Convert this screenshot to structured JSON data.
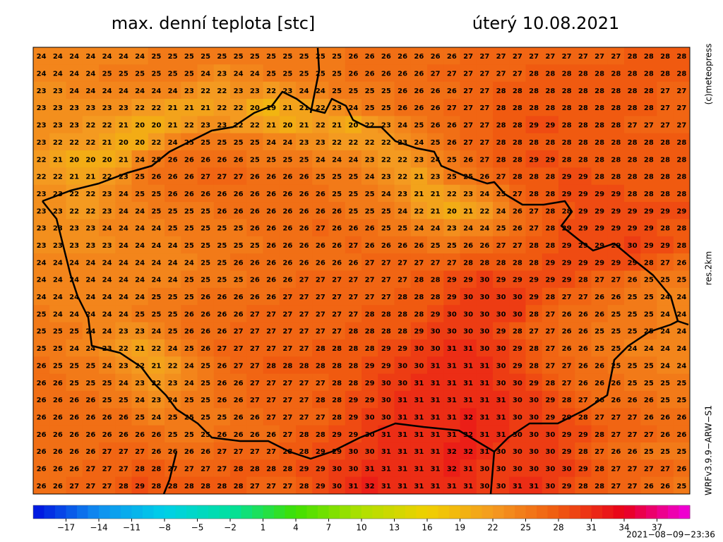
{
  "header": {
    "title": "max. denní teplota [stc]",
    "date": "úterý 10.08.2021"
  },
  "side_labels": {
    "credit": "(c)meteopress",
    "resolution": "res.2km",
    "model": "WRFv3.9.9−ARW−S1"
  },
  "timestamp": "2021−08−09−23:36",
  "map": {
    "grid": [
      [
        24,
        24,
        24,
        24,
        24,
        24,
        24,
        25,
        25,
        25,
        25,
        25,
        25,
        25,
        25,
        25,
        25,
        25,
        25,
        26,
        26,
        26,
        26,
        26,
        26,
        26,
        27,
        27,
        27,
        27,
        27,
        27,
        27,
        27,
        27,
        27,
        28,
        28,
        28,
        28
      ],
      [
        24,
        24,
        24,
        24,
        25,
        25,
        25,
        25,
        25,
        25,
        24,
        23,
        24,
        24,
        25,
        25,
        25,
        25,
        25,
        26,
        26,
        26,
        26,
        26,
        27,
        27,
        27,
        27,
        27,
        27,
        28,
        28,
        28,
        28,
        28,
        28,
        28,
        28,
        28,
        28
      ],
      [
        23,
        23,
        24,
        24,
        24,
        24,
        24,
        24,
        24,
        23,
        22,
        22,
        23,
        23,
        22,
        23,
        24,
        24,
        25,
        25,
        25,
        25,
        26,
        26,
        26,
        26,
        27,
        27,
        28,
        28,
        28,
        28,
        28,
        28,
        28,
        28,
        28,
        28,
        27,
        27
      ],
      [
        23,
        23,
        23,
        23,
        23,
        23,
        22,
        22,
        21,
        21,
        21,
        22,
        22,
        20,
        19,
        21,
        21,
        22,
        23,
        24,
        25,
        25,
        26,
        26,
        26,
        27,
        27,
        27,
        28,
        28,
        28,
        28,
        28,
        28,
        28,
        28,
        28,
        28,
        27,
        27
      ],
      [
        23,
        23,
        23,
        22,
        22,
        21,
        20,
        20,
        21,
        22,
        23,
        23,
        22,
        22,
        21,
        20,
        21,
        22,
        21,
        20,
        22,
        23,
        24,
        25,
        26,
        26,
        27,
        27,
        28,
        28,
        29,
        29,
        28,
        28,
        28,
        28,
        27,
        27,
        27,
        27
      ],
      [
        23,
        22,
        22,
        22,
        21,
        20,
        20,
        22,
        24,
        25,
        25,
        25,
        25,
        25,
        24,
        24,
        23,
        23,
        22,
        22,
        22,
        22,
        23,
        24,
        25,
        26,
        27,
        27,
        28,
        28,
        28,
        28,
        28,
        28,
        28,
        28,
        28,
        28,
        28,
        28
      ],
      [
        22,
        21,
        20,
        20,
        20,
        21,
        24,
        25,
        26,
        26,
        26,
        26,
        26,
        25,
        25,
        25,
        25,
        24,
        24,
        24,
        23,
        22,
        22,
        23,
        24,
        25,
        26,
        27,
        28,
        28,
        29,
        29,
        28,
        28,
        28,
        28,
        28,
        28,
        28,
        28
      ],
      [
        22,
        22,
        21,
        21,
        22,
        23,
        25,
        26,
        26,
        26,
        27,
        27,
        27,
        26,
        26,
        26,
        26,
        25,
        25,
        25,
        24,
        23,
        22,
        21,
        23,
        25,
        25,
        26,
        27,
        28,
        28,
        28,
        29,
        29,
        28,
        28,
        28,
        28,
        28,
        28
      ],
      [
        23,
        23,
        22,
        22,
        23,
        24,
        25,
        25,
        26,
        26,
        26,
        26,
        26,
        26,
        26,
        26,
        26,
        26,
        25,
        25,
        25,
        24,
        23,
        21,
        21,
        22,
        23,
        24,
        25,
        27,
        28,
        28,
        29,
        29,
        29,
        29,
        28,
        28,
        28,
        28
      ],
      [
        23,
        23,
        22,
        22,
        23,
        24,
        24,
        25,
        25,
        25,
        25,
        26,
        26,
        26,
        26,
        26,
        26,
        26,
        26,
        25,
        25,
        25,
        24,
        22,
        21,
        20,
        21,
        22,
        24,
        26,
        27,
        28,
        28,
        29,
        29,
        29,
        29,
        29,
        29,
        29
      ],
      [
        23,
        23,
        23,
        23,
        24,
        24,
        24,
        24,
        25,
        25,
        25,
        25,
        25,
        26,
        26,
        26,
        26,
        27,
        26,
        26,
        26,
        25,
        25,
        24,
        24,
        23,
        24,
        24,
        25,
        26,
        27,
        28,
        29,
        29,
        29,
        29,
        29,
        29,
        28,
        28
      ],
      [
        23,
        23,
        23,
        23,
        23,
        24,
        24,
        24,
        24,
        25,
        25,
        25,
        25,
        25,
        26,
        26,
        26,
        26,
        26,
        27,
        26,
        26,
        26,
        26,
        25,
        25,
        26,
        26,
        27,
        27,
        28,
        28,
        29,
        29,
        29,
        29,
        30,
        29,
        29,
        28
      ],
      [
        24,
        24,
        24,
        24,
        24,
        24,
        24,
        24,
        24,
        24,
        25,
        25,
        26,
        26,
        26,
        26,
        26,
        26,
        26,
        26,
        27,
        27,
        27,
        27,
        27,
        27,
        28,
        28,
        28,
        28,
        28,
        29,
        29,
        29,
        29,
        29,
        29,
        28,
        27,
        26
      ],
      [
        24,
        24,
        24,
        24,
        24,
        24,
        24,
        24,
        24,
        25,
        25,
        25,
        25,
        26,
        26,
        26,
        27,
        27,
        27,
        27,
        27,
        27,
        27,
        28,
        28,
        29,
        29,
        30,
        29,
        29,
        29,
        29,
        29,
        28,
        27,
        27,
        26,
        25,
        25,
        25
      ],
      [
        24,
        24,
        24,
        24,
        24,
        24,
        24,
        25,
        25,
        25,
        26,
        26,
        26,
        26,
        26,
        27,
        27,
        27,
        27,
        27,
        27,
        27,
        28,
        28,
        28,
        29,
        30,
        30,
        30,
        30,
        29,
        28,
        27,
        27,
        26,
        26,
        25,
        25,
        24,
        24
      ],
      [
        25,
        24,
        24,
        24,
        24,
        24,
        25,
        25,
        25,
        26,
        26,
        26,
        26,
        27,
        27,
        27,
        27,
        27,
        27,
        27,
        28,
        28,
        28,
        28,
        29,
        30,
        30,
        30,
        30,
        30,
        28,
        27,
        26,
        26,
        26,
        25,
        25,
        25,
        24,
        24
      ],
      [
        25,
        25,
        25,
        24,
        24,
        23,
        23,
        24,
        25,
        26,
        26,
        26,
        27,
        27,
        27,
        27,
        27,
        27,
        27,
        28,
        28,
        28,
        28,
        29,
        30,
        30,
        30,
        30,
        29,
        28,
        27,
        27,
        26,
        26,
        25,
        25,
        25,
        25,
        24,
        24
      ],
      [
        25,
        25,
        24,
        24,
        23,
        22,
        21,
        22,
        24,
        25,
        26,
        27,
        27,
        27,
        27,
        27,
        27,
        28,
        28,
        28,
        28,
        29,
        29,
        30,
        30,
        31,
        31,
        30,
        30,
        29,
        28,
        27,
        26,
        26,
        25,
        25,
        24,
        24,
        24,
        24
      ],
      [
        26,
        25,
        25,
        25,
        24,
        23,
        22,
        21,
        22,
        24,
        25,
        26,
        27,
        27,
        28,
        28,
        28,
        28,
        28,
        28,
        29,
        29,
        30,
        30,
        31,
        31,
        31,
        31,
        30,
        29,
        28,
        27,
        27,
        26,
        26,
        25,
        25,
        25,
        24,
        24
      ],
      [
        26,
        26,
        25,
        25,
        25,
        24,
        23,
        22,
        23,
        24,
        25,
        26,
        26,
        27,
        27,
        27,
        27,
        27,
        28,
        28,
        29,
        30,
        30,
        31,
        31,
        31,
        31,
        31,
        30,
        30,
        29,
        28,
        27,
        26,
        26,
        26,
        25,
        25,
        25,
        25
      ],
      [
        26,
        26,
        26,
        26,
        25,
        25,
        24,
        23,
        24,
        25,
        25,
        26,
        26,
        27,
        27,
        27,
        27,
        28,
        28,
        29,
        29,
        30,
        31,
        31,
        31,
        31,
        31,
        31,
        31,
        30,
        30,
        29,
        28,
        27,
        26,
        26,
        26,
        26,
        25,
        25
      ],
      [
        26,
        26,
        26,
        26,
        26,
        26,
        25,
        24,
        25,
        25,
        25,
        25,
        26,
        26,
        27,
        27,
        27,
        27,
        28,
        29,
        30,
        30,
        31,
        31,
        31,
        31,
        32,
        31,
        31,
        30,
        30,
        29,
        29,
        28,
        27,
        27,
        27,
        26,
        26,
        26
      ],
      [
        26,
        26,
        26,
        26,
        26,
        26,
        26,
        26,
        25,
        25,
        25,
        26,
        26,
        26,
        26,
        27,
        28,
        28,
        29,
        29,
        30,
        31,
        31,
        31,
        31,
        31,
        32,
        31,
        31,
        30,
        30,
        30,
        29,
        29,
        28,
        27,
        27,
        27,
        26,
        26
      ],
      [
        26,
        26,
        26,
        26,
        27,
        27,
        27,
        26,
        26,
        26,
        26,
        27,
        27,
        27,
        27,
        28,
        28,
        29,
        29,
        30,
        30,
        31,
        31,
        31,
        31,
        32,
        32,
        31,
        30,
        30,
        30,
        30,
        29,
        28,
        27,
        26,
        26,
        25,
        25,
        25
      ],
      [
        26,
        26,
        26,
        27,
        27,
        27,
        28,
        28,
        27,
        27,
        27,
        27,
        28,
        28,
        28,
        28,
        29,
        29,
        30,
        30,
        31,
        31,
        31,
        31,
        31,
        32,
        31,
        30,
        30,
        30,
        30,
        30,
        30,
        29,
        28,
        27,
        27,
        27,
        27,
        26
      ],
      [
        26,
        26,
        27,
        27,
        27,
        28,
        29,
        28,
        28,
        28,
        28,
        28,
        28,
        27,
        27,
        27,
        28,
        29,
        30,
        31,
        32,
        31,
        31,
        31,
        31,
        31,
        31,
        30,
        30,
        31,
        31,
        30,
        29,
        28,
        28,
        27,
        27,
        26,
        26,
        25
      ]
    ]
  },
  "colorbar": {
    "range": [
      -20,
      40
    ],
    "colors": [
      "#0010e0",
      "#1090f0",
      "#00d0e8",
      "#00e0a0",
      "#40e000",
      "#b0e000",
      "#f0d000",
      "#f49a20",
      "#f05a10",
      "#e8001a",
      "#f000e0"
    ],
    "ticks": [
      {
        "value": -17,
        "label": "−17"
      },
      {
        "value": -14,
        "label": "−14"
      },
      {
        "value": -11,
        "label": "−11"
      },
      {
        "value": -8,
        "label": "−8"
      },
      {
        "value": -5,
        "label": "−5"
      },
      {
        "value": -2,
        "label": "−2"
      },
      1,
      4,
      7,
      10,
      13,
      16,
      19,
      22,
      25,
      28,
      31,
      34,
      37
    ]
  }
}
